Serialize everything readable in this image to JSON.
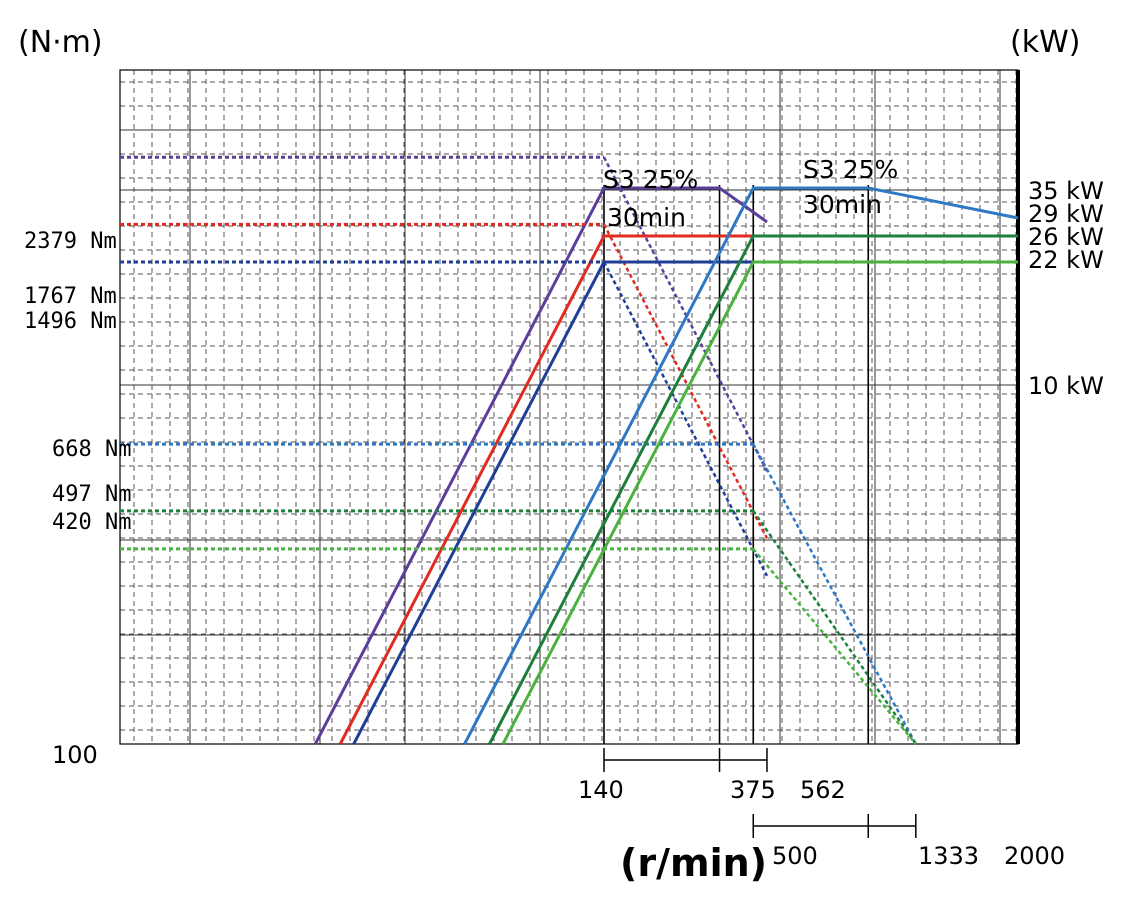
{
  "chart_data": {
    "type": "line",
    "title": "",
    "y_unit": "(N·m)",
    "y2_unit": "(kW)",
    "x_title": "(r/min)",
    "y_axis_min_label": "100",
    "scale": "log-log",
    "grid": true,
    "torque_labels": [
      "2379 Nm",
      "1767 Nm",
      "1496 Nm",
      "668 Nm",
      "497 Nm",
      "420 Nm"
    ],
    "power_labels": [
      "35 kW",
      "29 kW",
      "26 kW",
      "22 kW",
      "10 kW"
    ],
    "speed_ticks_low": [
      "140",
      "375",
      "562"
    ],
    "speed_ticks_high": [
      "500",
      "1333",
      "2000"
    ],
    "annotations": [
      {
        "line1": "S3 25%",
        "line2": "30min",
        "group": "low"
      },
      {
        "line1": "S3 25%",
        "line2": "30min",
        "group": "high"
      }
    ],
    "series": [
      {
        "group": "low",
        "color": "#5b3f9a",
        "torque": 2379,
        "power_s3": 35,
        "base_speed": 140,
        "max_speed": 562
      },
      {
        "group": "low",
        "color": "#e02b20",
        "torque": 1767,
        "power_s3": 26,
        "base_speed": 140,
        "max_speed": 562
      },
      {
        "group": "low",
        "color": "#1f3f96",
        "torque": 1496,
        "power_s3": 22,
        "base_speed": 140,
        "max_speed": 562
      },
      {
        "group": "high",
        "color": "#2f78c4",
        "torque": 668,
        "power_s3": 35,
        "base_speed": 500,
        "max_speed": 2000
      },
      {
        "group": "high",
        "color": "#1c7f3c",
        "torque": 497,
        "power_s3": 26,
        "base_speed": 500,
        "max_speed": 2000
      },
      {
        "group": "high",
        "color": "#4ab23e",
        "torque": 420,
        "power_s3": 22,
        "base_speed": 500,
        "max_speed": 2000
      }
    ]
  }
}
